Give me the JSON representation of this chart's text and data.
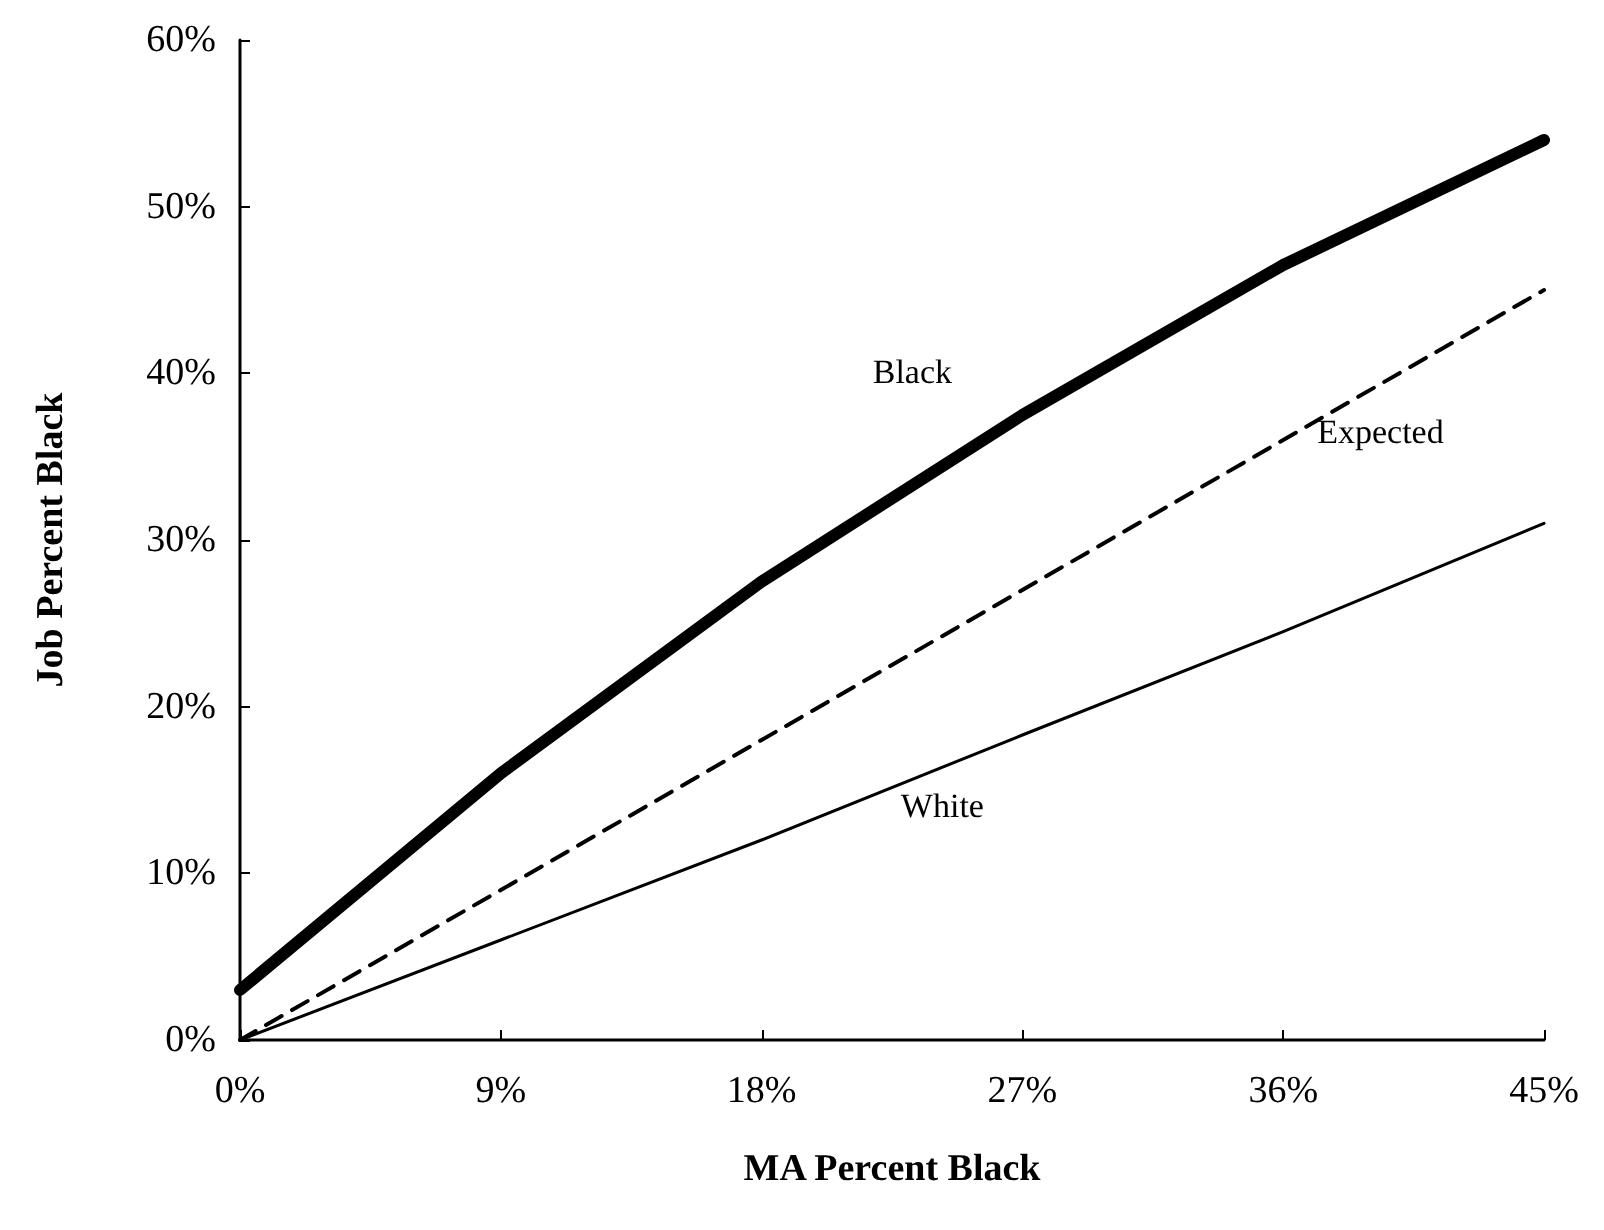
{
  "chart_data": {
    "type": "line",
    "xlabel": "MA Percent Black",
    "ylabel": "Job Percent Black",
    "x": [
      0,
      9,
      18,
      27,
      36,
      45
    ],
    "series": [
      {
        "name": "Black",
        "color": "#000000",
        "line_style": "solid",
        "values": [
          3,
          16,
          27.5,
          37.5,
          46.5,
          54
        ]
      },
      {
        "name": "Expected",
        "color": "#000000",
        "line_style": "dashed",
        "values": [
          0,
          9,
          18,
          27,
          36,
          45
        ]
      },
      {
        "name": "White",
        "color": "#000000",
        "line_style": "solid",
        "values": [
          0,
          6,
          12,
          18.3,
          24.5,
          31
        ]
      }
    ],
    "xlim": [
      0,
      45
    ],
    "xticks": [
      {
        "value": 0,
        "label": "0%"
      },
      {
        "value": 9,
        "label": "9%"
      },
      {
        "value": 18,
        "label": "18%"
      },
      {
        "value": 27,
        "label": "27%"
      },
      {
        "value": 36,
        "label": "36%"
      },
      {
        "value": 45,
        "label": "45%"
      }
    ],
    "ylim": [
      0,
      60
    ],
    "yticks": [
      {
        "value": 0,
        "label": "0%"
      },
      {
        "value": 10,
        "label": "10%"
      },
      {
        "value": 20,
        "label": "20%"
      },
      {
        "value": 30,
        "label": "30%"
      },
      {
        "value": 40,
        "label": "40%"
      },
      {
        "value": 50,
        "label": "50%"
      },
      {
        "value": 60,
        "label": "60%"
      }
    ],
    "grid": false,
    "legend": false,
    "marker": "none"
  }
}
